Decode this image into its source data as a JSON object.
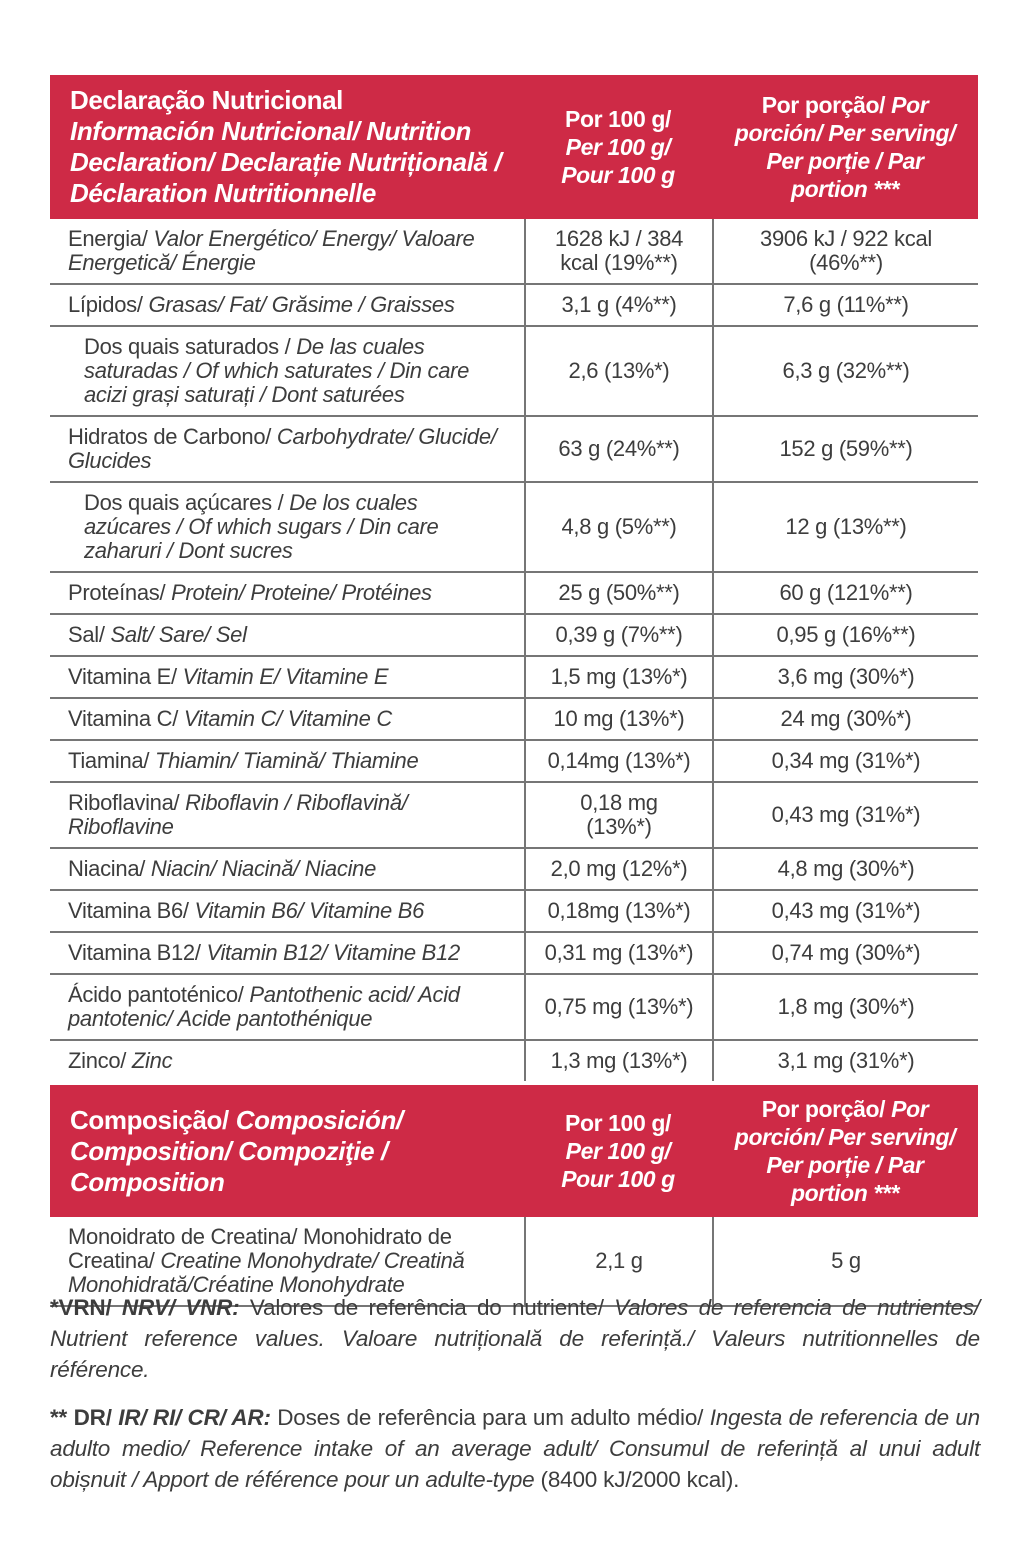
{
  "colors": {
    "header_bg": "#ce2a46",
    "header_text": "#ffffff",
    "body_text": "#3d3d3d",
    "divider": "#767676"
  },
  "nutrition_table": {
    "header": {
      "title_pt": "Declaração Nutricional",
      "title_other": "Información Nutricional/ Nutrition\nDeclaration/ Declarație Nutrițională /\nDéclaration Nutritionnelle",
      "per100_pt": "Por 100 g/",
      "per100_other": "Per 100 g/\nPour 100 g",
      "serving_pt": "Por porção/ ",
      "serving_other": "Por\nporción/ Per serving/\nPer porție / Par\nportion ***"
    },
    "rows": [
      {
        "pt": "Energia/",
        "other": " Valor Energético/ Energy/ Valoare Energetică/ Énergie",
        "indent": false,
        "per100": "1628 kJ / 384\nkcal (19%**)",
        "serving": "3906 kJ / 922 kcal\n(46%**)"
      },
      {
        "pt": "Lípidos/",
        "other": " Grasas/ Fat/ Grăsime / Graisses",
        "indent": false,
        "per100": "3,1 g (4%**)",
        "serving": "7,6 g (11%**)"
      },
      {
        "pt": "Dos quais saturados / ",
        "other": "De las cuales saturadas / Of which saturates / Din care acizi grași saturați / Dont saturées",
        "indent": true,
        "per100": "2,6 (13%*)",
        "serving": "6,3 g (32%**)"
      },
      {
        "pt": "Hidratos de Carbono/",
        "other": " Carbohydrate/ Glucide/ Glucides",
        "indent": false,
        "per100": "63 g (24%**)",
        "serving": "152 g (59%**)"
      },
      {
        "pt": "Dos quais açúcares / ",
        "other": "De los cuales azúcares / Of which sugars / Din care zaharuri / Dont sucres",
        "indent": true,
        "per100": "4,8 g (5%**)",
        "serving": "12 g (13%**)"
      },
      {
        "pt": "Proteínas/",
        "other": " Protein/ Proteine/ Protéines",
        "indent": false,
        "per100": "25 g (50%**)",
        "serving": "60 g (121%**)"
      },
      {
        "pt": "Sal/",
        "other": " Salt/ Sare/ Sel",
        "indent": false,
        "per100": "0,39 g (7%**)",
        "serving": "0,95 g (16%**)"
      },
      {
        "pt": "Vitamina E/",
        "other": " Vitamin E/ Vitamine E",
        "indent": false,
        "per100": "1,5 mg (13%*)",
        "serving": "3,6 mg (30%*)"
      },
      {
        "pt": "Vitamina C/",
        "other": " Vitamin C/ Vitamine C",
        "indent": false,
        "per100": "10 mg (13%*)",
        "serving": "24 mg (30%*)"
      },
      {
        "pt": "Tiamina/",
        "other": " Thiamin/ Tiamină/ Thiamine",
        "indent": false,
        "per100": "0,14mg (13%*)",
        "serving": "0,34 mg (31%*)"
      },
      {
        "pt": "Riboflavina/",
        "other": " Riboflavin / Riboflavină/ Riboflavine",
        "indent": false,
        "per100": "0,18 mg\n(13%*)",
        "serving": "0,43 mg (31%*)"
      },
      {
        "pt": "Niacina/",
        "other": " Niacin/ Niacină/ Niacine",
        "indent": false,
        "per100": "2,0 mg (12%*)",
        "serving": "4,8 mg (30%*)"
      },
      {
        "pt": "Vitamina B6/",
        "other": " Vitamin B6/ Vitamine B6",
        "indent": false,
        "per100": "0,18mg (13%*)",
        "serving": "0,43 mg (31%*)"
      },
      {
        "pt": "Vitamina B12/",
        "other": " Vitamin B12/ Vitamine B12",
        "indent": false,
        "per100": "0,31 mg (13%*)",
        "serving": "0,74 mg (30%*)"
      },
      {
        "pt": "Ácido pantoténico/",
        "other": " Pantothenic acid/ Acid pantotenic/ Acide pantothénique",
        "indent": false,
        "per100": "0,75 mg (13%*)",
        "serving": "1,8 mg (30%*)"
      },
      {
        "pt": "Zinco/",
        "other": " Zinc",
        "indent": false,
        "per100": "1,3 mg (13%*)",
        "serving": "3,1 mg (31%*)"
      }
    ]
  },
  "composition_table": {
    "header": {
      "title_pt": "Composição/ ",
      "title_other": "Composición/\nComposition/ Compoziţie /\nComposition",
      "per100_pt": "Por 100 g/",
      "per100_other": "Per 100 g/\nPour 100 g",
      "serving_pt": "Por porção/ ",
      "serving_other": "Por\nporción/ Per serving/\nPer porție / Par\nportion ***"
    },
    "rows": [
      {
        "pt": "Monoidrato de Creatina/ Monohidrato de Creatina/",
        "other": " Creatine Monohydrate/ Creatină Monohidrată/Créatine Monohydrate",
        "indent": false,
        "per100": "2,1 g",
        "serving": "5 g"
      }
    ]
  },
  "footnotes": [
    {
      "bold_pt": "*VRN/ ",
      "bold_other": "NRV/ VNR:",
      "text_pt": " Valores de referência do nutriente/ ",
      "text_other": "Valores de referencia de nutrientes/ Nutrient reference values. Valoare nutrițională de referință./ Valeurs nutritionnelles de référence.",
      "text_tail": ""
    },
    {
      "bold_pt": "** DR/ ",
      "bold_other": "IR/ RI/ CR/ AR:",
      "text_pt": " Doses de referência para um adulto médio/ ",
      "text_other": "Ingesta de referencia de un adulto medio/ Reference intake of an average adult/ Consumul de referință al unui adult obișnuit / Apport de référence pour un adulte-type ",
      "text_tail": "(8400 kJ/2000 kcal)."
    }
  ]
}
